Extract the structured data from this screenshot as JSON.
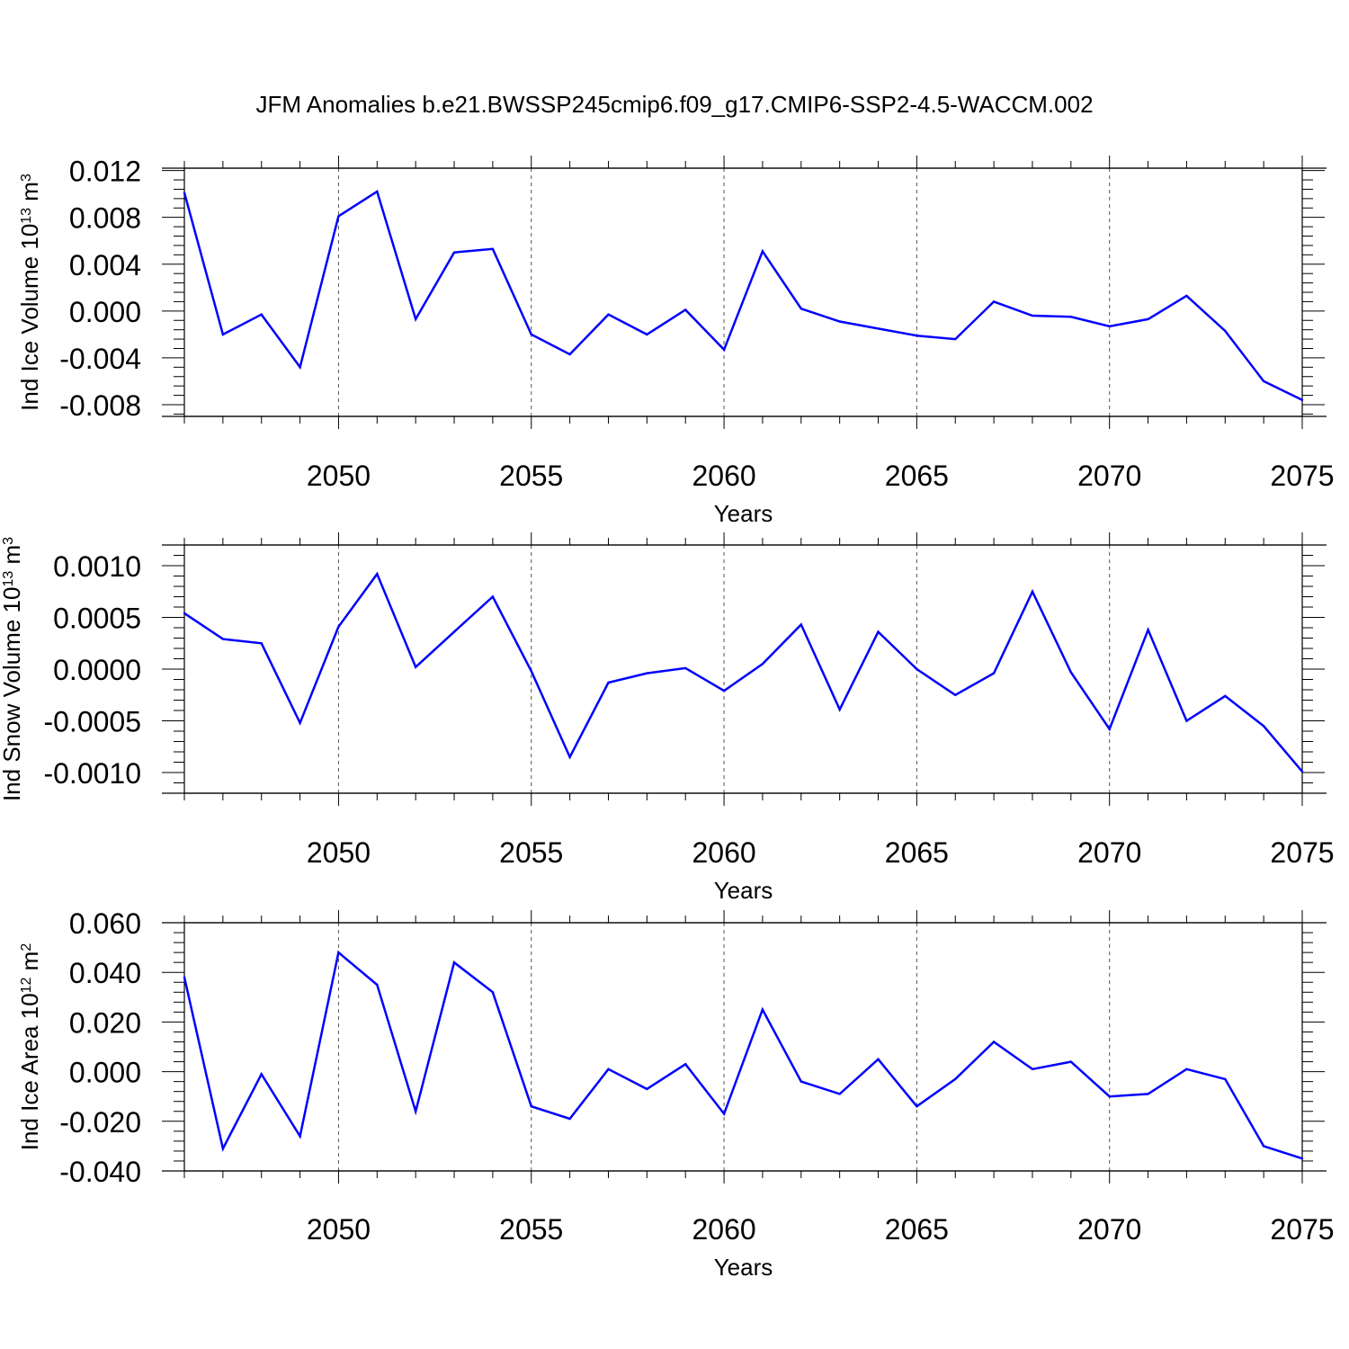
{
  "title": "JFM Anomalies b.e21.BWSSP245cmip6.f09_g17.CMIP6-SSP2-4.5-WACCM.002",
  "line_color": "#0000ff",
  "chart_data": [
    {
      "type": "line",
      "ylabel": "Ind Ice Volume 10",
      "ylabel_exp": "13",
      "ylabel_unit": " m",
      "ylabel_unit_exp": "3",
      "xlabel": "Years",
      "xlim": [
        2046,
        2075
      ],
      "ylim": [
        -0.009,
        0.0122
      ],
      "yticks": [
        0.012,
        0.008,
        0.004,
        0.0,
        -0.004,
        -0.008
      ],
      "ytick_labels": [
        "0.012",
        "0.008",
        "0.004",
        "0.000",
        "-0.004",
        "-0.008"
      ],
      "xticks": [
        2050,
        2055,
        2060,
        2065,
        2070,
        2075
      ],
      "xtick_labels": [
        "2050",
        "2055",
        "2060",
        "2065",
        "2070",
        "2075"
      ],
      "grid": "dashed vertical at labeled x ticks",
      "x": [
        2046,
        2047,
        2048,
        2049,
        2050,
        2051,
        2052,
        2053,
        2054,
        2055,
        2056,
        2057,
        2058,
        2059,
        2060,
        2061,
        2062,
        2063,
        2064,
        2065,
        2066,
        2067,
        2068,
        2069,
        2070,
        2071,
        2072,
        2073,
        2074,
        2075
      ],
      "y": [
        0.0101,
        -0.002,
        -0.0003,
        -0.0048,
        0.0081,
        0.0102,
        -0.0007,
        0.005,
        0.0053,
        -0.002,
        -0.0037,
        -0.0003,
        -0.002,
        0.0001,
        -0.0033,
        0.0051,
        0.0002,
        -0.0009,
        -0.0015,
        -0.0021,
        -0.0024,
        0.0008,
        -0.0004,
        -0.0005,
        -0.0013,
        -0.0007,
        0.0013,
        -0.0017,
        -0.006,
        -0.0076
      ]
    },
    {
      "type": "line",
      "ylabel": "Ind Snow Volume 10",
      "ylabel_exp": "13",
      "ylabel_unit": " m",
      "ylabel_unit_exp": "3",
      "xlabel": "Years",
      "xlim": [
        2046,
        2075
      ],
      "ylim": [
        -0.0012,
        0.0012
      ],
      "yticks": [
        0.001,
        0.0005,
        0.0,
        -0.0005,
        -0.001
      ],
      "ytick_labels": [
        "0.0010",
        "0.0005",
        "0.0000",
        "-0.0005",
        "-0.0010"
      ],
      "xticks": [
        2050,
        2055,
        2060,
        2065,
        2070,
        2075
      ],
      "xtick_labels": [
        "2050",
        "2055",
        "2060",
        "2065",
        "2070",
        "2075"
      ],
      "grid": "dashed vertical at labeled x ticks",
      "x": [
        2046,
        2047,
        2048,
        2049,
        2050,
        2051,
        2052,
        2053,
        2054,
        2055,
        2056,
        2057,
        2058,
        2059,
        2060,
        2061,
        2062,
        2063,
        2064,
        2065,
        2066,
        2067,
        2068,
        2069,
        2070,
        2071,
        2072,
        2073,
        2074,
        2075
      ],
      "y": [
        0.00054,
        0.00029,
        0.00025,
        -0.00052,
        0.00041,
        0.00092,
        2e-05,
        0.00036,
        0.0007,
        -2e-05,
        -0.00085,
        -0.00013,
        -4e-05,
        1e-05,
        -0.00021,
        5e-05,
        0.00043,
        -0.00039,
        0.00036,
        0.0,
        -0.00025,
        -4e-05,
        0.00075,
        -3e-05,
        -0.00058,
        0.00038,
        -0.0005,
        -0.00026,
        -0.00055,
        -0.00099
      ]
    },
    {
      "type": "line",
      "ylabel": "Ind Ice Area 10",
      "ylabel_exp": "12",
      "ylabel_unit": " m",
      "ylabel_unit_exp": "2",
      "xlabel": "Years",
      "xlim": [
        2046,
        2075
      ],
      "ylim": [
        -0.04,
        0.06
      ],
      "yticks": [
        0.06,
        0.04,
        0.02,
        0.0,
        -0.02,
        -0.04
      ],
      "ytick_labels": [
        "0.060",
        "0.040",
        "0.020",
        "0.000",
        "-0.020",
        "-0.040"
      ],
      "xticks": [
        2050,
        2055,
        2060,
        2065,
        2070,
        2075
      ],
      "xtick_labels": [
        "2050",
        "2055",
        "2060",
        "2065",
        "2070",
        "2075"
      ],
      "grid": "dashed vertical at labeled x ticks",
      "x": [
        2046,
        2047,
        2048,
        2049,
        2050,
        2051,
        2052,
        2053,
        2054,
        2055,
        2056,
        2057,
        2058,
        2059,
        2060,
        2061,
        2062,
        2063,
        2064,
        2065,
        2066,
        2067,
        2068,
        2069,
        2070,
        2071,
        2072,
        2073,
        2074,
        2075
      ],
      "y": [
        0.038,
        -0.031,
        -0.001,
        -0.026,
        0.048,
        0.035,
        -0.016,
        0.044,
        0.032,
        -0.014,
        -0.019,
        0.001,
        -0.007,
        0.003,
        -0.017,
        0.025,
        -0.004,
        -0.009,
        0.005,
        -0.014,
        -0.003,
        0.012,
        0.001,
        0.004,
        -0.01,
        -0.009,
        0.001,
        -0.003,
        -0.03,
        -0.035
      ]
    }
  ]
}
